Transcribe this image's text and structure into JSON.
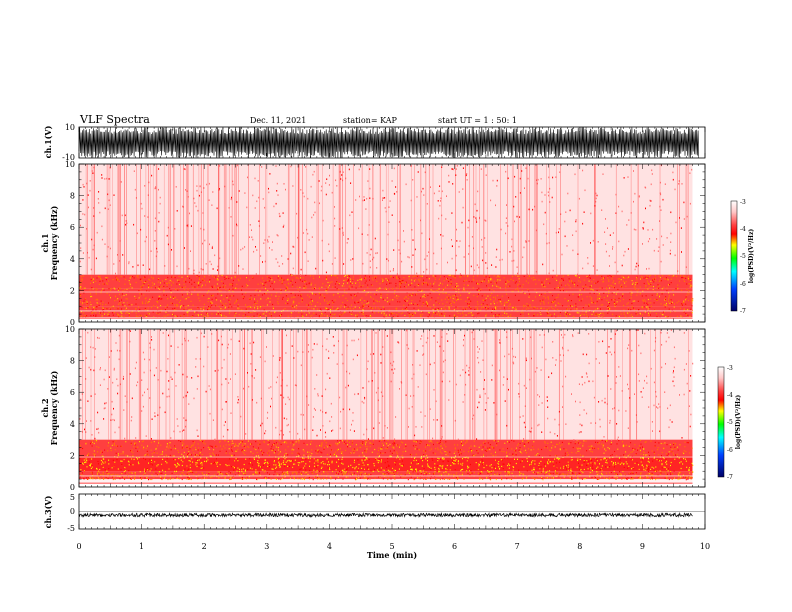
{
  "header": {
    "title": "VLF Spectra",
    "date": "Dec. 11, 2021",
    "station": "station= KAP",
    "start": "start UT =  1 : 50: 1"
  },
  "chart_data": [
    {
      "type": "line",
      "name": "ch1-waveform",
      "ylabel": "ch.1(V)",
      "ylim": [
        -10,
        10
      ],
      "yticks": [
        "10",
        "-10"
      ],
      "xlim": [
        0,
        10
      ],
      "note": "saturated black waveform filling the range"
    },
    {
      "type": "heatmap",
      "name": "ch1-spectrogram",
      "ylabel_top": "ch.1",
      "ylabel": "Frequency  (kHz)",
      "xlim": [
        0,
        10
      ],
      "ylim": [
        0,
        10
      ],
      "data_end_min": 9.8,
      "yticks": [
        "0",
        "2",
        "4",
        "6",
        "8",
        "10"
      ],
      "colorbar": {
        "label": "log(PSD)(V²/Hz)",
        "range": [
          -7,
          -3
        ],
        "ticks": [
          "-3",
          "-4",
          "-5",
          "-6",
          "-7"
        ]
      },
      "bands": [
        {
          "from_khz": 0.3,
          "to_khz": 1.0,
          "level": -4.0
        },
        {
          "from_khz": 1.0,
          "to_khz": 2.1,
          "level": -3.9
        },
        {
          "from_khz": 2.1,
          "to_khz": 3.0,
          "level": -4.3
        },
        {
          "from_khz": 3.0,
          "to_khz": 10.0,
          "level": -5.0
        }
      ]
    },
    {
      "type": "heatmap",
      "name": "ch2-spectrogram",
      "ylabel_top": "ch.2",
      "ylabel": "Frequency  (kHz)",
      "xlim": [
        0,
        10
      ],
      "ylim": [
        0,
        10
      ],
      "data_end_min": 9.8,
      "yticks": [
        "0",
        "2",
        "4",
        "6",
        "8",
        "10"
      ],
      "colorbar": {
        "label": "log(PSD)(V²/Hz)",
        "range": [
          -7,
          -3
        ],
        "ticks": [
          "-3",
          "-4",
          "-5",
          "-6",
          "-7"
        ]
      },
      "bands": [
        {
          "from_khz": 0.5,
          "to_khz": 1.0,
          "level": -3.9
        },
        {
          "from_khz": 1.0,
          "to_khz": 2.0,
          "level": -3.7
        },
        {
          "from_khz": 2.0,
          "to_khz": 3.0,
          "level": -4.0
        },
        {
          "from_khz": 3.0,
          "to_khz": 10.0,
          "level": -5.0
        }
      ]
    },
    {
      "type": "line",
      "name": "ch3-waveform",
      "ylabel": "ch.3(V)",
      "ylim": [
        -5,
        5
      ],
      "yticks": [
        "5",
        "0",
        "-5"
      ],
      "xlim": [
        0,
        10
      ],
      "level": -1,
      "xlabel": "Time  (min)",
      "xticks": [
        "0",
        "1",
        "2",
        "3",
        "4",
        "5",
        "6",
        "7",
        "8",
        "9",
        "10"
      ]
    }
  ],
  "colors": {
    "bg": "#ffffff",
    "ink": "#000000",
    "spec_high": "#ffff00",
    "spec_mid": "#ff0000",
    "spec_low": "#ffd0d0"
  }
}
